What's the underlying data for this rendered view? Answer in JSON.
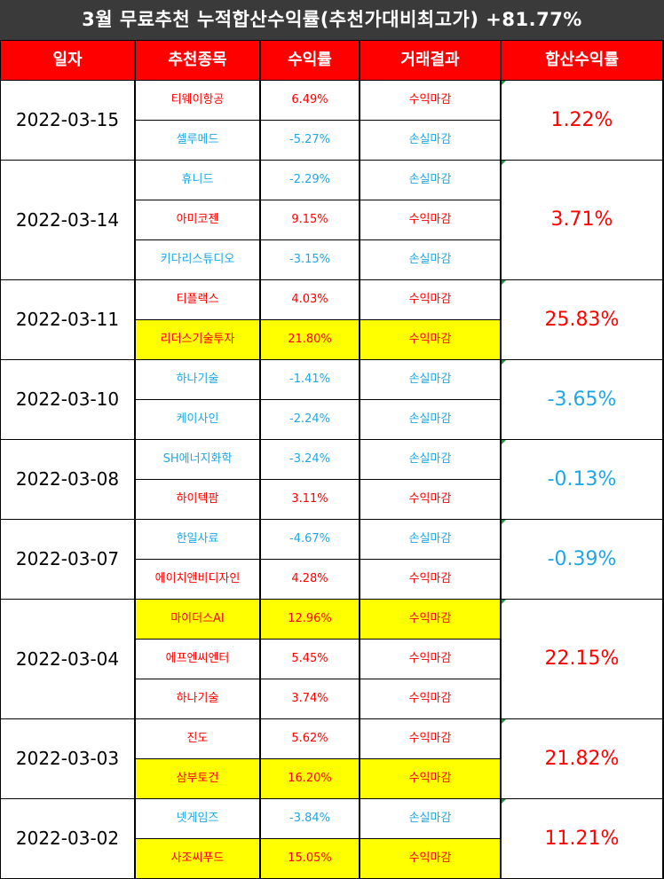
{
  "title": "3월 무료추천 누적합산수익률(추천가대비최고가) +81.77%",
  "headers": {
    "date": "일자",
    "stock": "추천종목",
    "return": "수익률",
    "result": "거래결과",
    "sum": "합산수익률"
  },
  "colors": {
    "header_red": "#ff0000",
    "gain": "#ff0000",
    "loss": "#1ea7e6",
    "highlight": "#ffff00",
    "banner": "#3a3a3a"
  },
  "groups": [
    {
      "date": "2022-03-15",
      "total": "1.22%",
      "total_type": "gain",
      "items": [
        {
          "stock": "티웨이항공",
          "return": "6.49%",
          "result": "수익마감",
          "type": "gain",
          "highlight": false
        },
        {
          "stock": "셀루메드",
          "return": "-5.27%",
          "result": "손실마감",
          "type": "loss",
          "highlight": false
        }
      ]
    },
    {
      "date": "2022-03-14",
      "total": "3.71%",
      "total_type": "gain",
      "items": [
        {
          "stock": "휴니드",
          "return": "-2.29%",
          "result": "손실마감",
          "type": "loss",
          "highlight": false
        },
        {
          "stock": "아미코젠",
          "return": "9.15%",
          "result": "수익마감",
          "type": "gain",
          "highlight": false
        },
        {
          "stock": "키다리스튜디오",
          "return": "-3.15%",
          "result": "손실마감",
          "type": "loss",
          "highlight": false
        }
      ]
    },
    {
      "date": "2022-03-11",
      "total": "25.83%",
      "total_type": "gain",
      "items": [
        {
          "stock": "티플랙스",
          "return": "4.03%",
          "result": "수익마감",
          "type": "gain",
          "highlight": false
        },
        {
          "stock": "리더스기술투자",
          "return": "21.80%",
          "result": "수익마감",
          "type": "gain",
          "highlight": true
        }
      ]
    },
    {
      "date": "2022-03-10",
      "total": "-3.65%",
      "total_type": "loss",
      "items": [
        {
          "stock": "하나기술",
          "return": "-1.41%",
          "result": "손실마감",
          "type": "loss",
          "highlight": false
        },
        {
          "stock": "케이사인",
          "return": "-2.24%",
          "result": "손실마감",
          "type": "loss",
          "highlight": false
        }
      ]
    },
    {
      "date": "2022-03-08",
      "total": "-0.13%",
      "total_type": "loss",
      "items": [
        {
          "stock": "SH에너지화학",
          "return": "-3.24%",
          "result": "손실마감",
          "type": "loss",
          "highlight": false
        },
        {
          "stock": "하이텍팜",
          "return": "3.11%",
          "result": "수익마감",
          "type": "gain",
          "highlight": false
        }
      ]
    },
    {
      "date": "2022-03-07",
      "total": "-0.39%",
      "total_type": "loss",
      "items": [
        {
          "stock": "한일사료",
          "return": "-4.67%",
          "result": "손실마감",
          "type": "loss",
          "highlight": false
        },
        {
          "stock": "에이치앤비디자인",
          "return": "4.28%",
          "result": "수익마감",
          "type": "gain",
          "highlight": false
        }
      ]
    },
    {
      "date": "2022-03-04",
      "total": "22.15%",
      "total_type": "gain",
      "items": [
        {
          "stock": "마이더스AI",
          "return": "12.96%",
          "result": "수익마감",
          "type": "gain",
          "highlight": true
        },
        {
          "stock": "에프엔씨엔터",
          "return": "5.45%",
          "result": "수익마감",
          "type": "gain",
          "highlight": false
        },
        {
          "stock": "하나기술",
          "return": "3.74%",
          "result": "수익마감",
          "type": "gain",
          "highlight": false
        }
      ]
    },
    {
      "date": "2022-03-03",
      "total": "21.82%",
      "total_type": "gain",
      "items": [
        {
          "stock": "진도",
          "return": "5.62%",
          "result": "수익마감",
          "type": "gain",
          "highlight": false
        },
        {
          "stock": "삼부토건",
          "return": "16.20%",
          "result": "수익마감",
          "type": "gain",
          "highlight": true
        }
      ]
    },
    {
      "date": "2022-03-02",
      "total": "11.21%",
      "total_type": "gain",
      "items": [
        {
          "stock": "넷게임즈",
          "return": "-3.84%",
          "result": "손실마감",
          "type": "loss",
          "highlight": false
        },
        {
          "stock": "사조씨푸드",
          "return": "15.05%",
          "result": "수익마감",
          "type": "gain",
          "highlight": true
        }
      ]
    }
  ]
}
